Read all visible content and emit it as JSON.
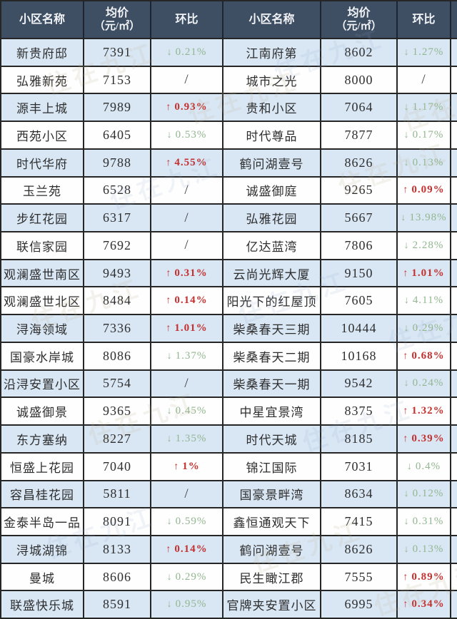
{
  "watermark": {
    "text": "住在九江"
  },
  "colors": {
    "header_bg": "#3e4e63",
    "header_text": "#f2f4f7",
    "row_alt_bg": "#d9e7f5",
    "row_bg": "#fefefe",
    "border": "#262626",
    "text": "#2e2e2e",
    "up_red": "#c4302e",
    "down_green": "#92b68f",
    "slash": "#3f3f3f"
  },
  "chart_data": {
    "type": "table",
    "columns": [
      "小区名称",
      "均价（元/㎡）",
      "环比",
      "小区名称",
      "均价（元/㎡）",
      "环比"
    ],
    "rows": [
      [
        "新贵府邸",
        "7391",
        "↓0.21%",
        "江南府第",
        "8602",
        "↓1.27%"
      ],
      [
        "弘雅新苑",
        "7153",
        "/",
        "城市之光",
        "8000",
        "/"
      ],
      [
        "源丰上城",
        "7989",
        "↑0.93%",
        "贵和小区",
        "7064",
        "↓1.17%"
      ],
      [
        "西苑小区",
        "6405",
        "↓0.53%",
        "时代尊品",
        "7877",
        "↓0.17%"
      ],
      [
        "时代华府",
        "9788",
        "↑4.55%",
        "鹤问湖壹号",
        "8626",
        "↓0.13%"
      ],
      [
        "玉兰苑",
        "6528",
        "/",
        "诚盛御庭",
        "9265",
        "↑0.09%"
      ],
      [
        "步红花园",
        "6317",
        "/",
        "弘雅花园",
        "5667",
        "↓13.98%"
      ],
      [
        "联信家园",
        "7692",
        "/",
        "亿达蓝湾",
        "7806",
        "↓2.28%"
      ],
      [
        "观澜盛世南区",
        "9493",
        "↑0.31%",
        "云尚光辉大厦",
        "9150",
        "↑1.01%"
      ],
      [
        "观澜盛世北区",
        "8484",
        "↑0.14%",
        "阳光下的红屋顶",
        "7605",
        "↓4.11%"
      ],
      [
        "浔海领域",
        "7336",
        "↑1.01%",
        "柴桑春天三期",
        "10444",
        "↓0.29%"
      ],
      [
        "国豪水岸城",
        "8086",
        "↓1.37%",
        "柴桑春天二期",
        "10168",
        "↑0.68%"
      ],
      [
        "沿浔安置小区",
        "5754",
        "/",
        "柴桑春天一期",
        "9542",
        "↓0.24%"
      ],
      [
        "诚盛御景",
        "9365",
        "↓0.45%",
        "中星宜景湾",
        "8375",
        "↑1.32%"
      ],
      [
        "东方塞纳",
        "8227",
        "↓1.35%",
        "时代天城",
        "8185",
        "↑0.39%"
      ],
      [
        "恒盛上花园",
        "7040",
        "↑1%",
        "锦江国际",
        "7031",
        "↓0.4%"
      ],
      [
        "容昌桂花园",
        "5811",
        "/",
        "国豪景畔湾",
        "8634",
        "↓0.12%"
      ],
      [
        "金泰半岛一品",
        "8091",
        "↓0.59%",
        "鑫恒通观天下",
        "7415",
        "↓0.31%"
      ],
      [
        "浔城湖锦",
        "8133",
        "↑0.14%",
        "鹤问湖壹号",
        "8626",
        "↓0.13%"
      ],
      [
        "曼城",
        "8606",
        "↓0.29%",
        "民生瞰江郡",
        "7555",
        "↑0.89%"
      ],
      [
        "联盛快乐城",
        "8591",
        "↓0.95%",
        "官牌夹安置小区",
        "6995",
        "↑0.34%"
      ]
    ]
  }
}
